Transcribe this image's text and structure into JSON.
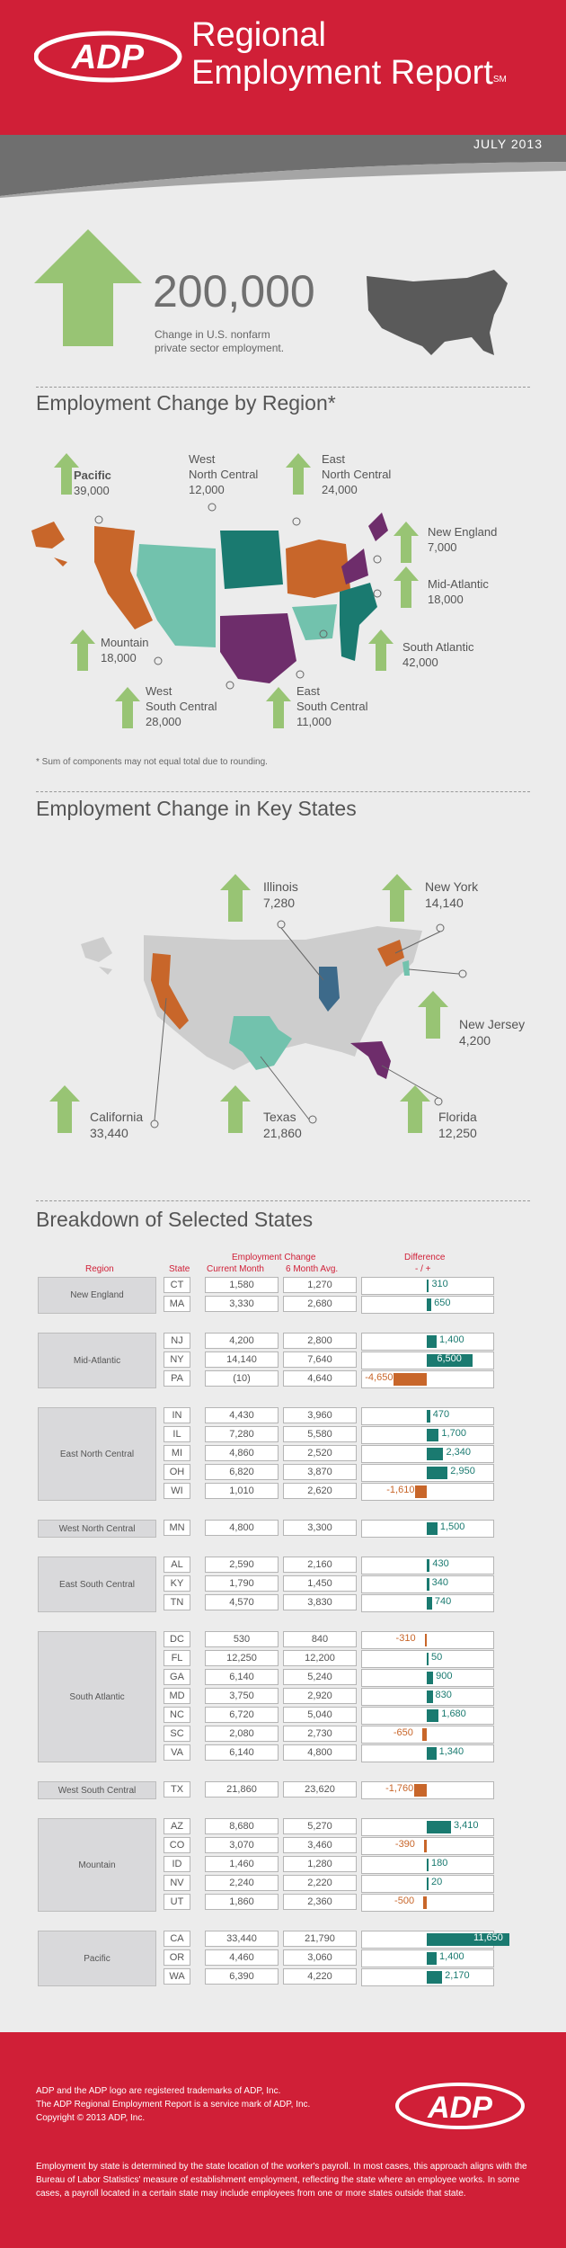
{
  "header": {
    "title_line1": "Regional",
    "title_line2": "Employment Report",
    "sm_mark": "SM",
    "month": "JULY 2013",
    "logo_text": "ADP"
  },
  "summary": {
    "total": "200,000",
    "caption": "Change in U.S. nonfarm private sector employment."
  },
  "region_section": {
    "title": "Employment Change by Region*",
    "footnote": "* Sum of components may not equal total due to rounding.",
    "regions": [
      {
        "name": "Pacific",
        "value": "39,000"
      },
      {
        "name": "West North Central",
        "value": "12,000"
      },
      {
        "name": "East North Central",
        "value": "24,000"
      },
      {
        "name": "New England",
        "value": "7,000"
      },
      {
        "name": "Mid-Atlantic",
        "value": "18,000"
      },
      {
        "name": "South Atlantic",
        "value": "42,000"
      },
      {
        "name": "Mountain",
        "value": "18,000"
      },
      {
        "name": "West South Central",
        "value": "28,000"
      },
      {
        "name": "East South Central",
        "value": "11,000"
      }
    ],
    "colors": {
      "orange": "#c8662a",
      "teal": "#1a7a70",
      "mint": "#72c2ad",
      "purple": "#6e2d6b",
      "green": "#98c474"
    }
  },
  "states_section": {
    "title": "Employment Change in Key States",
    "states": [
      {
        "name": "Illinois",
        "value": "7,280"
      },
      {
        "name": "New York",
        "value": "14,140"
      },
      {
        "name": "New Jersey",
        "value": "4,200"
      },
      {
        "name": "California",
        "value": "33,440"
      },
      {
        "name": "Texas",
        "value": "21,860"
      },
      {
        "name": "Florida",
        "value": "12,250"
      }
    ]
  },
  "breakdown": {
    "title": "Breakdown of Selected States",
    "col_region": "Region",
    "col_state": "State",
    "col_emp_change": "Employment Change",
    "col_current": "Current Month",
    "col_avg": "6 Month Avg.",
    "col_diff": "Difference",
    "col_diff_sign": "- / +",
    "groups": [
      {
        "region": "New England",
        "rows": [
          {
            "state": "CT",
            "current": "1,580",
            "avg": "1,270",
            "diff": "310",
            "d": 310
          },
          {
            "state": "MA",
            "current": "3,330",
            "avg": "2,680",
            "diff": "650",
            "d": 650
          }
        ]
      },
      {
        "region": "Mid-Atlantic",
        "rows": [
          {
            "state": "NJ",
            "current": "4,200",
            "avg": "2,800",
            "diff": "1,400",
            "d": 1400
          },
          {
            "state": "NY",
            "current": "14,140",
            "avg": "7,640",
            "diff": "6,500",
            "d": 6500
          },
          {
            "state": "PA",
            "current": "(10)",
            "avg": "4,640",
            "diff": "-4,650",
            "d": -4650
          }
        ]
      },
      {
        "region": "East North Central",
        "rows": [
          {
            "state": "IN",
            "current": "4,430",
            "avg": "3,960",
            "diff": "470",
            "d": 470
          },
          {
            "state": "IL",
            "current": "7,280",
            "avg": "5,580",
            "diff": "1,700",
            "d": 1700
          },
          {
            "state": "MI",
            "current": "4,860",
            "avg": "2,520",
            "diff": "2,340",
            "d": 2340
          },
          {
            "state": "OH",
            "current": "6,820",
            "avg": "3,870",
            "diff": "2,950",
            "d": 2950
          },
          {
            "state": "WI",
            "current": "1,010",
            "avg": "2,620",
            "diff": "-1,610",
            "d": -1610
          }
        ]
      },
      {
        "region": "West North Central",
        "rows": [
          {
            "state": "MN",
            "current": "4,800",
            "avg": "3,300",
            "diff": "1,500",
            "d": 1500
          }
        ]
      },
      {
        "region": "East South Central",
        "rows": [
          {
            "state": "AL",
            "current": "2,590",
            "avg": "2,160",
            "diff": "430",
            "d": 430
          },
          {
            "state": "KY",
            "current": "1,790",
            "avg": "1,450",
            "diff": "340",
            "d": 340
          },
          {
            "state": "TN",
            "current": "4,570",
            "avg": "3,830",
            "diff": "740",
            "d": 740
          }
        ]
      },
      {
        "region": "South Atlantic",
        "rows": [
          {
            "state": "DC",
            "current": "530",
            "avg": "840",
            "diff": "-310",
            "d": -310
          },
          {
            "state": "FL",
            "current": "12,250",
            "avg": "12,200",
            "diff": "50",
            "d": 50
          },
          {
            "state": "GA",
            "current": "6,140",
            "avg": "5,240",
            "diff": "900",
            "d": 900
          },
          {
            "state": "MD",
            "current": "3,750",
            "avg": "2,920",
            "diff": "830",
            "d": 830
          },
          {
            "state": "NC",
            "current": "6,720",
            "avg": "5,040",
            "diff": "1,680",
            "d": 1680
          },
          {
            "state": "SC",
            "current": "2,080",
            "avg": "2,730",
            "diff": "-650",
            "d": -650
          },
          {
            "state": "VA",
            "current": "6,140",
            "avg": "4,800",
            "diff": "1,340",
            "d": 1340
          }
        ]
      },
      {
        "region": "West South Central",
        "rows": [
          {
            "state": "TX",
            "current": "21,860",
            "avg": "23,620",
            "diff": "-1,760",
            "d": -1760
          }
        ]
      },
      {
        "region": "Mountain",
        "rows": [
          {
            "state": "AZ",
            "current": "8,680",
            "avg": "5,270",
            "diff": "3,410",
            "d": 3410
          },
          {
            "state": "CO",
            "current": "3,070",
            "avg": "3,460",
            "diff": "-390",
            "d": -390
          },
          {
            "state": "ID",
            "current": "1,460",
            "avg": "1,280",
            "diff": "180",
            "d": 180
          },
          {
            "state": "NV",
            "current": "2,240",
            "avg": "2,220",
            "diff": "20",
            "d": 20
          },
          {
            "state": "UT",
            "current": "1,860",
            "avg": "2,360",
            "diff": "-500",
            "d": -500
          }
        ]
      },
      {
        "region": "Pacific",
        "rows": [
          {
            "state": "CA",
            "current": "33,440",
            "avg": "21,790",
            "diff": "11,650",
            "d": 11650
          },
          {
            "state": "OR",
            "current": "4,460",
            "avg": "3,060",
            "diff": "1,400",
            "d": 1400
          },
          {
            "state": "WA",
            "current": "6,390",
            "avg": "4,220",
            "diff": "2,170",
            "d": 2170
          }
        ]
      }
    ],
    "colors": {
      "pos": "#1a7a70",
      "neg": "#c8662a",
      "header_red": "#d01f37"
    }
  },
  "footer": {
    "trademark1": "ADP and the ADP logo are registered trademarks of ADP, Inc.",
    "trademark2": "The ADP Regional Employment Report is a service mark of ADP, Inc.",
    "copyright": "Copyright © 2013 ADP, Inc.",
    "note": "Employment by state is determined by the state location of the worker's payroll. In most cases, this approach aligns with the Bureau of Labor Statistics' measure of establishment employment, reflecting the state where an employee works. In some cases, a payroll located in a certain state may include employees from one or more states outside that state."
  }
}
